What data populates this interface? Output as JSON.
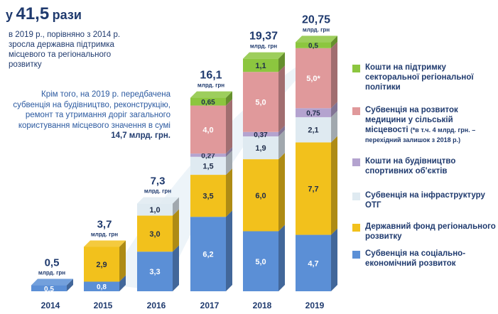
{
  "headline": {
    "prefix": "у",
    "number": "41,5",
    "suffix": "рази"
  },
  "subhead": "в 2019 р., порівняно з 2014 р. зросла державна підтримка місцевого та регіонального розвитку",
  "note": {
    "text": "Крім того, на 2019 р. передбачена субвенція на будівництво, реконструкцію, ремонт та утримання доріг загального користування місцевого значення в сумі ",
    "amount": "14,7 млрд. грн."
  },
  "unit_label": "млрд. грн",
  "colors": {
    "sectoral": "#8cc63f",
    "medicine": "#e0999b",
    "sports": "#b4a3cf",
    "infrastructure": "#dfeaf1",
    "fund": "#f2c11c",
    "socioeconomic": "#5b8fd6"
  },
  "legend": [
    {
      "key": "sectoral",
      "label": "Кошти на підтримку секторальної регіональної політики",
      "note": ""
    },
    {
      "key": "medicine",
      "label": "Субвенція на розвиток медицини у сільській місцевості",
      "note": "(*в т.ч. 4 млрд. грн. – перехідний залишок з 2018 р.)"
    },
    {
      "key": "sports",
      "label": "Кошти на будівництво спортивних об'єктів",
      "note": ""
    },
    {
      "key": "infrastructure",
      "label": "Субвенція на інфраструктуру ОТГ",
      "note": ""
    },
    {
      "key": "fund",
      "label": "Державний фонд регіонального розвитку",
      "note": ""
    },
    {
      "key": "socioeconomic",
      "label": "Субвенція на соціально-економічний розвиток",
      "note": ""
    }
  ],
  "chart_data": {
    "type": "bar",
    "stacked": true,
    "categories": [
      "2014",
      "2015",
      "2016",
      "2017",
      "2018",
      "2019"
    ],
    "totals": [
      0.5,
      3.7,
      7.3,
      16.1,
      19.37,
      20.75
    ],
    "total_labels": [
      "0,5",
      "3,7",
      "7,3",
      "16,1",
      "19,37",
      "20,75"
    ],
    "series": [
      {
        "key": "socioeconomic",
        "values": [
          0.5,
          0.8,
          3.3,
          6.2,
          5.0,
          4.7
        ],
        "labels": [
          "0,5",
          "0,8",
          "3,3",
          "6,2",
          "5,0",
          "4,7"
        ]
      },
      {
        "key": "fund",
        "values": [
          0,
          2.9,
          3.0,
          3.5,
          6.0,
          7.7
        ],
        "labels": [
          "",
          "2,9",
          "3,0",
          "3,5",
          "6,0",
          "7,7"
        ]
      },
      {
        "key": "infrastructure",
        "values": [
          0,
          0,
          1.0,
          1.5,
          1.9,
          2.1
        ],
        "labels": [
          "",
          "",
          "1,0",
          "1,5",
          "1,9",
          "2,1"
        ]
      },
      {
        "key": "sports",
        "values": [
          0,
          0,
          0,
          0.27,
          0.37,
          0.75
        ],
        "labels": [
          "",
          "",
          "",
          "0,27",
          "0,37",
          "0,75"
        ]
      },
      {
        "key": "medicine",
        "values": [
          0,
          0,
          0,
          4.0,
          5.0,
          5.0
        ],
        "labels": [
          "",
          "",
          "",
          "4,0",
          "5,0",
          "5,0*"
        ]
      },
      {
        "key": "sectoral",
        "values": [
          0,
          0,
          0,
          0.65,
          1.1,
          0.5
        ],
        "labels": [
          "",
          "",
          "",
          "0,65",
          "1,1",
          "0,5"
        ]
      }
    ],
    "ylim": [
      0,
      22
    ],
    "grid": false,
    "legend_position": "right",
    "xlabel": "",
    "ylabel": ""
  }
}
